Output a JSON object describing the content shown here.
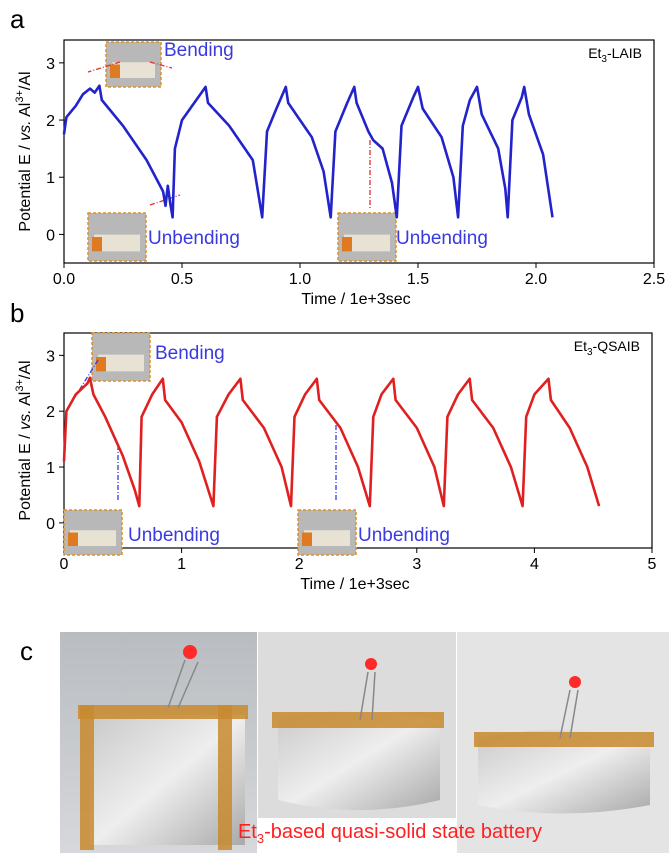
{
  "chart_data": [
    {
      "type": "line",
      "panel": "a",
      "label_parts": [
        "Et",
        "3",
        "-LAIB"
      ],
      "x_label": "Time / 1e+3sec",
      "y_label_parts": [
        "Potential E / ",
        "vs.",
        " Al",
        "3+",
        "/Al"
      ],
      "annotations": [
        "Bending",
        "Unbending",
        "Unbending"
      ],
      "xlim": [
        0,
        2.5
      ],
      "xticks": [
        {
          "value": 0,
          "label": "0.0"
        },
        0.5,
        {
          "value": 1,
          "label": "1.0"
        },
        1.5,
        {
          "value": 2,
          "label": "2.0"
        },
        2.5
      ],
      "ylim": [
        -0.5,
        3.4
      ],
      "yticks": [
        0,
        1,
        2,
        3
      ],
      "x": [
        0,
        0.01,
        0.05,
        0.08,
        0.11,
        0.13,
        0.15,
        0.16,
        0.25,
        0.35,
        0.42,
        0.43,
        0.44,
        0.45,
        0.46,
        0.47,
        0.5,
        0.6,
        0.61,
        0.7,
        0.8,
        0.84,
        0.86,
        0.9,
        0.94,
        0.95,
        1.05,
        1.1,
        1.13,
        1.15,
        1.2,
        1.23,
        1.24,
        1.29,
        1.31,
        1.35,
        1.39,
        1.41,
        1.43,
        1.48,
        1.5,
        1.52,
        1.6,
        1.65,
        1.67,
        1.69,
        1.72,
        1.75,
        1.77,
        1.84,
        1.87,
        1.88,
        1.9,
        1.94,
        1.95,
        1.97,
        2.03,
        2.07
      ],
      "series": [
        {
          "color": "#2323cc",
          "values": [
            1.75,
            2.05,
            2.25,
            2.45,
            2.55,
            2.48,
            2.6,
            2.35,
            1.9,
            1.3,
            0.75,
            0.5,
            0.85,
            0.55,
            0.3,
            1.5,
            2.0,
            2.58,
            2.3,
            1.9,
            1.3,
            0.3,
            1.8,
            2.2,
            2.58,
            2.3,
            1.7,
            1.1,
            0.3,
            1.8,
            2.3,
            2.58,
            2.3,
            1.8,
            1.65,
            1.5,
            0.9,
            0.3,
            1.9,
            2.4,
            2.58,
            2.2,
            1.7,
            1.0,
            0.3,
            1.9,
            2.35,
            2.58,
            2.1,
            1.5,
            0.8,
            0.3,
            2.0,
            2.4,
            2.58,
            2.1,
            1.4,
            0.3
          ]
        }
      ]
    },
    {
      "type": "line",
      "panel": "b",
      "label_parts": [
        "Et",
        "3",
        "-QSAIB"
      ],
      "x_label": "Time / 1e+3sec",
      "y_label_parts": [
        "Potential E / ",
        "vs.",
        " Al",
        "3+",
        "/Al"
      ],
      "annotations": [
        "Bending",
        "Unbending",
        "Unbending"
      ],
      "xlim": [
        0,
        5
      ],
      "xticks": [
        0,
        1,
        2,
        3,
        4,
        5
      ],
      "ylim": [
        -0.45,
        3.4
      ],
      "yticks": [
        0,
        1,
        2,
        3
      ],
      "x": [
        0,
        0.02,
        0.1,
        0.2,
        0.22,
        0.25,
        0.35,
        0.5,
        0.6,
        0.64,
        0.66,
        0.75,
        0.84,
        0.86,
        1.0,
        1.15,
        1.27,
        1.3,
        1.4,
        1.5,
        1.52,
        1.7,
        1.85,
        1.93,
        1.96,
        2.05,
        2.15,
        2.17,
        2.35,
        2.5,
        2.6,
        2.63,
        2.7,
        2.8,
        2.82,
        3.0,
        3.15,
        3.23,
        3.26,
        3.35,
        3.45,
        3.47,
        3.65,
        3.8,
        3.9,
        3.93,
        4.0,
        4.12,
        4.14,
        4.3,
        4.45,
        4.55
      ],
      "series": [
        {
          "color": "#e02020",
          "values": [
            1.1,
            2.0,
            2.3,
            2.5,
            2.6,
            2.3,
            1.9,
            1.2,
            0.6,
            0.3,
            1.9,
            2.3,
            2.58,
            2.2,
            1.8,
            1.1,
            0.3,
            1.9,
            2.3,
            2.58,
            2.2,
            1.7,
            1.0,
            0.3,
            1.9,
            2.3,
            2.58,
            2.2,
            1.7,
            1.0,
            0.3,
            1.9,
            2.3,
            2.58,
            2.2,
            1.7,
            1.0,
            0.3,
            1.9,
            2.3,
            2.58,
            2.2,
            1.7,
            1.0,
            0.3,
            1.9,
            2.3,
            2.58,
            2.2,
            1.7,
            1.0,
            0.3
          ]
        }
      ]
    }
  ],
  "photo_panel": {
    "panel": "c",
    "caption_parts": [
      "Et",
      "3",
      "-based quasi-solid state battery"
    ]
  }
}
